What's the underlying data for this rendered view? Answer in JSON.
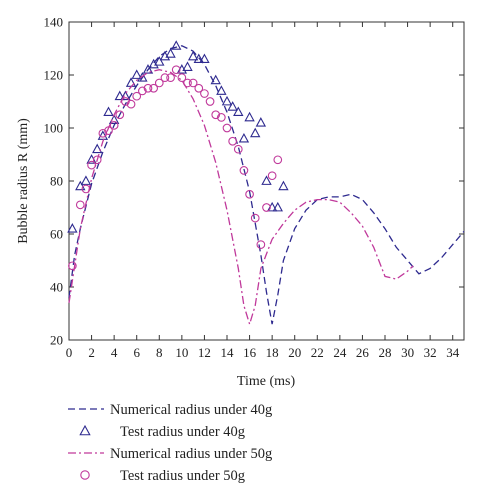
{
  "chart_data": {
    "type": "line",
    "title": "",
    "xlabel": "Time (ms)",
    "ylabel": "Bubble radius R (mm)",
    "xlim": [
      0,
      35
    ],
    "ylim": [
      20,
      140
    ],
    "xticks": [
      0,
      2,
      4,
      6,
      8,
      10,
      12,
      14,
      16,
      18,
      20,
      22,
      24,
      26,
      28,
      30,
      32,
      34
    ],
    "yticks": [
      20,
      40,
      60,
      80,
      100,
      120,
      140
    ],
    "grid": false,
    "legend_position": "below",
    "series": [
      {
        "name": "Numerical radius under 40g",
        "kind": "line",
        "style": "dashed",
        "color": "#2e2a8f",
        "x": [
          0,
          0.5,
          1,
          2,
          3,
          4,
          5,
          6,
          7,
          8,
          9,
          10,
          11,
          12,
          13,
          14,
          15,
          16,
          17,
          17.5,
          18,
          18.5,
          19,
          20,
          21,
          22,
          23,
          24,
          25,
          26,
          27,
          28,
          29,
          30,
          31,
          32,
          33,
          34,
          35
        ],
        "y": [
          36,
          52,
          62,
          79,
          91,
          101,
          109,
          116,
          122,
          127,
          130,
          131,
          129,
          124,
          116,
          106,
          93,
          76,
          52,
          38,
          26,
          37,
          50,
          62,
          69,
          73,
          74,
          74,
          75,
          73,
          68,
          62,
          55,
          50,
          45,
          47,
          51,
          56,
          61
        ]
      },
      {
        "name": "Test radius under 40g",
        "kind": "scatter",
        "marker": "triangle",
        "color": "#2e2a8f",
        "x": [
          0.3,
          1,
          1.5,
          2,
          2.5,
          3,
          3.5,
          4,
          4.5,
          5,
          5.5,
          6,
          6.5,
          7,
          7.5,
          8,
          8.5,
          9,
          9.5,
          10,
          10.5,
          11,
          11.5,
          12,
          13,
          13.5,
          14,
          14.5,
          15,
          15.5,
          16,
          16.5,
          17,
          17.5,
          18,
          18.5,
          19
        ],
        "y": [
          62,
          78,
          80,
          88,
          92,
          97,
          106,
          103,
          112,
          112,
          117,
          120,
          119,
          122,
          124,
          125,
          127,
          128,
          131,
          122,
          123,
          127,
          126,
          126,
          118,
          114,
          110,
          108,
          106,
          96,
          104,
          98,
          102,
          80,
          70,
          70,
          78
        ]
      },
      {
        "name": "Numerical radius under 50g",
        "kind": "line",
        "style": "dashdot",
        "color": "#c0399b",
        "x": [
          0,
          1,
          2,
          3,
          4,
          5,
          6,
          7,
          8,
          9,
          10,
          11,
          12,
          13,
          14,
          15,
          15.5,
          16,
          16.5,
          17,
          18,
          19,
          20,
          21,
          22,
          23,
          24,
          25,
          26,
          27,
          28,
          29,
          30,
          30.5
        ],
        "y": [
          34,
          62,
          81,
          95,
          105,
          113,
          118,
          121,
          122,
          121,
          118,
          111,
          101,
          87,
          69,
          47,
          33,
          26,
          33,
          47,
          58,
          64,
          69,
          72,
          73,
          73,
          72,
          68,
          63,
          55,
          44,
          43,
          46,
          48
        ]
      },
      {
        "name": "Test radius under 50g",
        "kind": "scatter",
        "marker": "circle",
        "color": "#c0399b",
        "x": [
          0.3,
          1,
          1.5,
          2,
          2.5,
          3,
          3.5,
          4,
          4.5,
          5,
          5.5,
          6,
          6.5,
          7,
          7.5,
          8,
          8.5,
          9,
          9.5,
          10,
          10.5,
          11,
          11.5,
          12,
          12.5,
          13,
          13.5,
          14,
          14.5,
          15,
          15.5,
          16,
          16.5,
          17,
          17.5,
          18,
          18.5
        ],
        "y": [
          48,
          71,
          77,
          86,
          88,
          98,
          99,
          101,
          105,
          110,
          109,
          112,
          114,
          115,
          115,
          117,
          119,
          119,
          122,
          119,
          117,
          117,
          115,
          113,
          110,
          105,
          104,
          100,
          95,
          92,
          84,
          75,
          66,
          56,
          70,
          82,
          88
        ]
      }
    ]
  }
}
